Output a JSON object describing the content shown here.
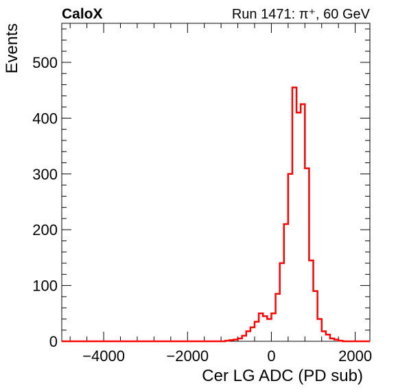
{
  "chart_data": {
    "type": "histogram",
    "title_left": "CaloX",
    "title_right": "Run 1471: π⁺, 60 GeV",
    "xlabel": "Cer LG ADC (PD sub)",
    "ylabel": "Events",
    "xlim": [
      -5000,
      2350
    ],
    "ylim": [
      0,
      570
    ],
    "xticks": [
      -4000,
      -2000,
      0,
      2000
    ],
    "yticks": [
      0,
      100,
      200,
      300,
      400,
      500
    ],
    "grid": false,
    "line_color": "#ff0000",
    "series": [
      {
        "bin_width": 100,
        "bins": [
          {
            "x": -1100,
            "y": 1
          },
          {
            "x": -1000,
            "y": 2
          },
          {
            "x": -900,
            "y": 3
          },
          {
            "x": -800,
            "y": 5
          },
          {
            "x": -700,
            "y": 10
          },
          {
            "x": -600,
            "y": 18
          },
          {
            "x": -500,
            "y": 25
          },
          {
            "x": -400,
            "y": 35
          },
          {
            "x": -300,
            "y": 50
          },
          {
            "x": -200,
            "y": 45
          },
          {
            "x": -100,
            "y": 40
          },
          {
            "x": 0,
            "y": 50
          },
          {
            "x": 100,
            "y": 85
          },
          {
            "x": 200,
            "y": 140
          },
          {
            "x": 300,
            "y": 210
          },
          {
            "x": 400,
            "y": 300
          },
          {
            "x": 500,
            "y": 455
          },
          {
            "x": 600,
            "y": 410
          },
          {
            "x": 700,
            "y": 425
          },
          {
            "x": 800,
            "y": 310
          },
          {
            "x": 900,
            "y": 145
          },
          {
            "x": 1000,
            "y": 90
          },
          {
            "x": 1100,
            "y": 40
          },
          {
            "x": 1200,
            "y": 18
          },
          {
            "x": 1300,
            "y": 12
          },
          {
            "x": 1400,
            "y": 5
          },
          {
            "x": 1500,
            "y": 3
          },
          {
            "x": 1600,
            "y": 1
          }
        ]
      }
    ]
  }
}
